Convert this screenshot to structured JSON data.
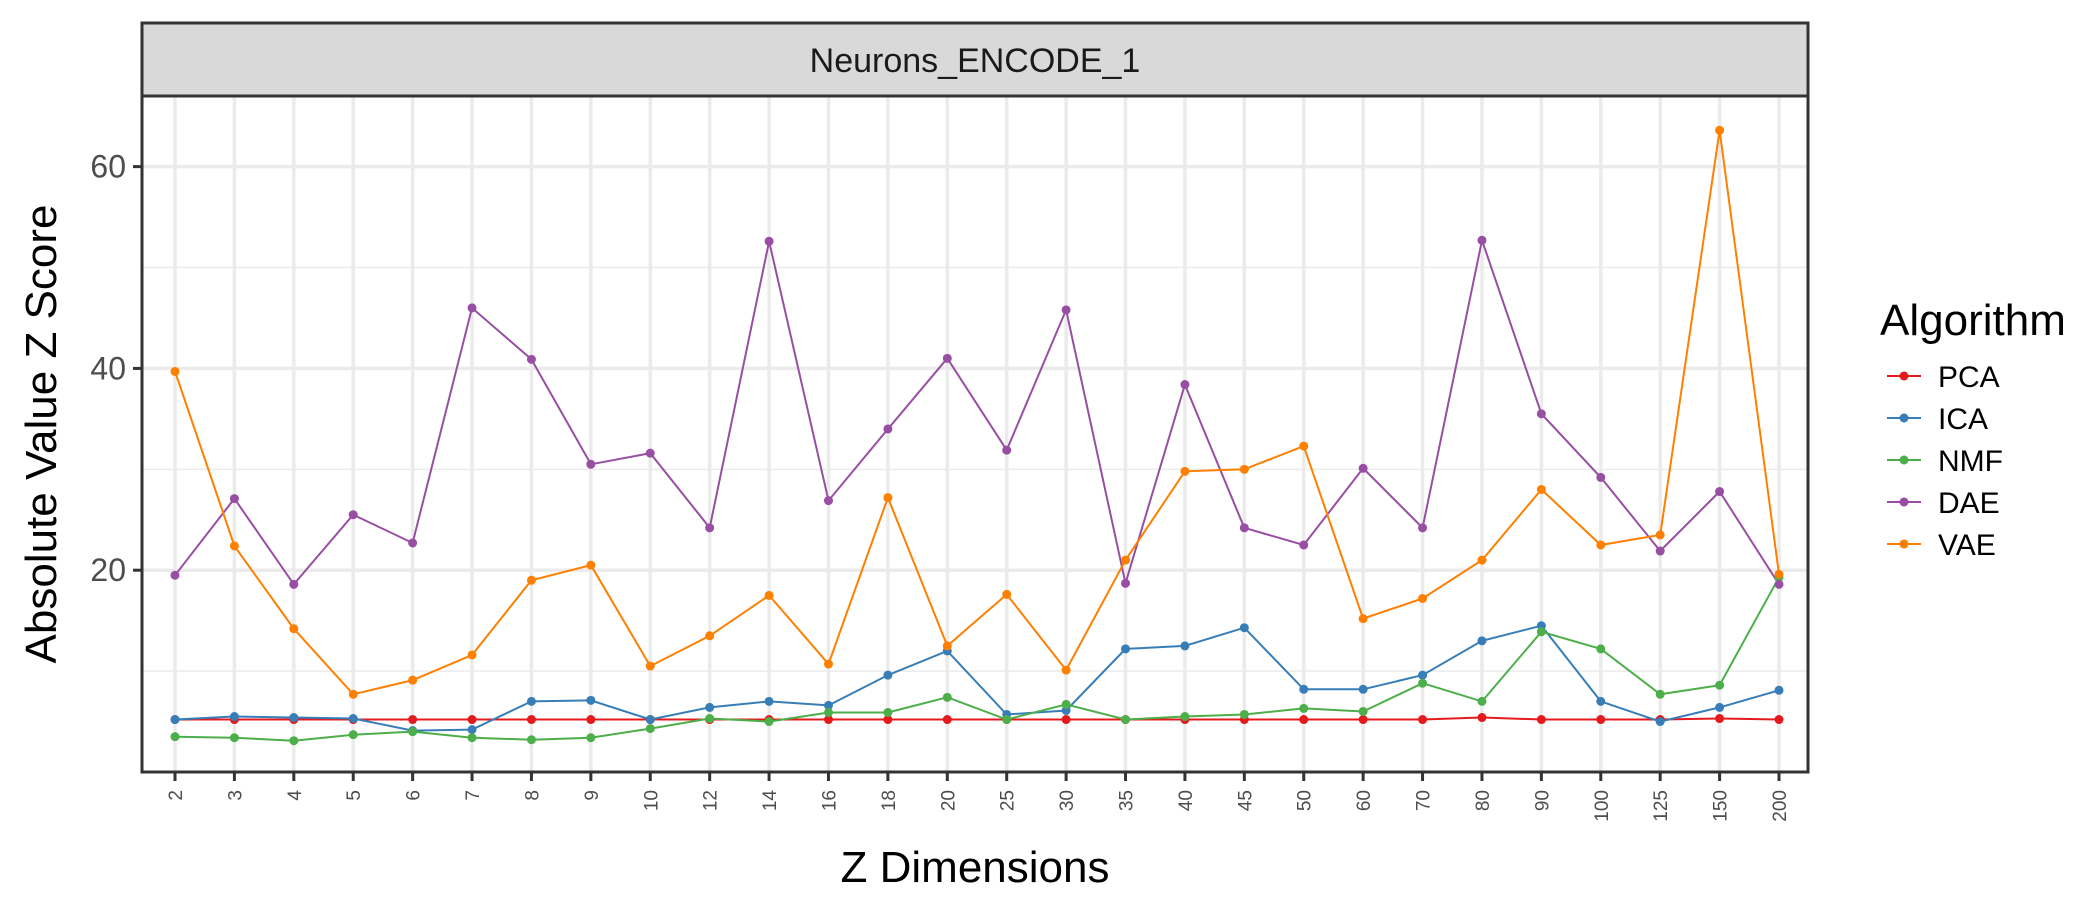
{
  "chart_data": {
    "type": "line",
    "facet_label": "Neurons_ENCODE_1",
    "xlabel": "Z Dimensions",
    "ylabel": "Absolute Value Z Score",
    "categories": [
      "2",
      "3",
      "4",
      "5",
      "6",
      "7",
      "8",
      "9",
      "10",
      "12",
      "14",
      "16",
      "18",
      "20",
      "25",
      "30",
      "35",
      "40",
      "45",
      "50",
      "60",
      "70",
      "80",
      "90",
      "100",
      "125",
      "150",
      "200"
    ],
    "ylim": [
      0,
      67
    ],
    "yticks": [
      20,
      40,
      60
    ],
    "grid": true,
    "legend": {
      "title": "Algorithm",
      "position": "right"
    },
    "series": [
      {
        "name": "PCA",
        "color": "#e41a1c",
        "values": [
          5.2,
          5.2,
          5.2,
          5.2,
          5.2,
          5.2,
          5.2,
          5.2,
          5.2,
          5.2,
          5.2,
          5.2,
          5.2,
          5.2,
          5.2,
          5.2,
          5.2,
          5.2,
          5.2,
          5.2,
          5.2,
          5.2,
          5.4,
          5.2,
          5.2,
          5.2,
          5.3,
          5.2
        ]
      },
      {
        "name": "ICA",
        "color": "#377eb8",
        "values": [
          5.2,
          5.5,
          5.4,
          5.3,
          4.1,
          4.2,
          7.0,
          7.1,
          5.2,
          6.4,
          7.0,
          6.6,
          9.6,
          12.0,
          5.7,
          6.1,
          12.2,
          12.5,
          14.3,
          8.2,
          8.2,
          9.6,
          13.0,
          14.5,
          7.0,
          5.0,
          6.4,
          8.1
        ]
      },
      {
        "name": "NMF",
        "color": "#4daf4a",
        "values": [
          3.5,
          3.4,
          3.1,
          3.7,
          4.0,
          3.4,
          3.2,
          3.4,
          4.3,
          5.3,
          5.0,
          5.9,
          5.9,
          7.4,
          5.2,
          6.7,
          5.2,
          5.5,
          5.7,
          6.3,
          6.0,
          8.8,
          7.0,
          13.9,
          12.2,
          7.7,
          8.6,
          19.3
        ]
      },
      {
        "name": "DAE",
        "color": "#984ea3",
        "values": [
          19.5,
          27.1,
          18.6,
          25.5,
          22.7,
          46.0,
          40.9,
          30.5,
          31.6,
          24.2,
          52.6,
          26.9,
          34.0,
          41.0,
          31.9,
          45.8,
          18.7,
          38.4,
          24.2,
          22.5,
          30.1,
          24.2,
          52.7,
          35.5,
          29.2,
          21.9,
          27.8,
          18.6
        ]
      },
      {
        "name": "VAE",
        "color": "#ff7f00",
        "values": [
          39.7,
          22.4,
          14.2,
          7.7,
          9.1,
          11.6,
          19.0,
          20.5,
          10.5,
          13.5,
          17.5,
          10.7,
          27.2,
          12.5,
          17.6,
          10.1,
          21.0,
          29.8,
          30.0,
          32.3,
          15.2,
          17.2,
          21.0,
          28.0,
          22.5,
          23.5,
          63.6,
          19.6
        ]
      }
    ]
  }
}
